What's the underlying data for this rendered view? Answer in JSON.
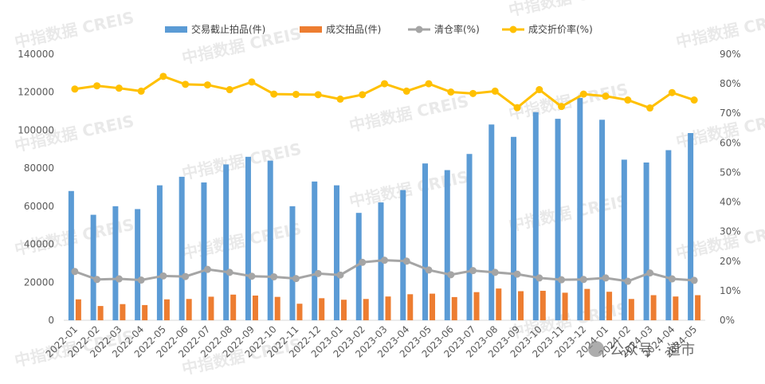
{
  "chart_data": {
    "type": "bar",
    "categories": [
      "2022-01",
      "2022-02",
      "2022-03",
      "2022-04",
      "2022-05",
      "2022-06",
      "2022-07",
      "2022-08",
      "2022-09",
      "2022-10",
      "2022-11",
      "2022-12",
      "2023-01",
      "2023-02",
      "2023-03",
      "2023-04",
      "2023-05",
      "2023-06",
      "2023-07",
      "2023-08",
      "2023-09",
      "2023-10",
      "2023-11",
      "2023-12",
      "2024-01",
      "2024-02",
      "2024-03",
      "2024-04",
      "2024-05"
    ],
    "series": [
      {
        "name": "交易截止拍品(件)",
        "kind": "bar",
        "axis": "left",
        "color": "#5b9bd5",
        "values": [
          68000,
          55500,
          60000,
          58500,
          71000,
          75500,
          72500,
          82000,
          86000,
          84000,
          60000,
          73000,
          71000,
          56500,
          62000,
          68500,
          82500,
          79000,
          87500,
          103000,
          96500,
          109500,
          106000,
          117000,
          105500,
          84500,
          83000,
          89500,
          98500
        ]
      },
      {
        "name": "成交拍品(件)",
        "kind": "bar",
        "axis": "left",
        "color": "#ed7d31",
        "values": [
          11000,
          7500,
          8500,
          8000,
          11000,
          11200,
          12400,
          13500,
          13000,
          12300,
          8700,
          11600,
          10800,
          11200,
          12500,
          13700,
          14000,
          12200,
          14800,
          16700,
          15300,
          15500,
          14500,
          16500,
          15000,
          11200,
          13200,
          12500,
          13200
        ]
      },
      {
        "name": "清仓率(%)",
        "kind": "line",
        "axis": "right",
        "color": "#a5a5a5",
        "values": [
          16.5,
          13.8,
          14.0,
          13.6,
          15.0,
          14.8,
          17.2,
          16.2,
          14.9,
          14.7,
          14.1,
          15.8,
          15.3,
          19.6,
          20.3,
          20.0,
          17.0,
          15.4,
          16.8,
          16.2,
          15.6,
          14.3,
          13.7,
          13.8,
          14.3,
          13.2,
          16.0,
          14.0,
          13.5
        ]
      },
      {
        "name": "成交折价率(%)",
        "kind": "line",
        "axis": "right",
        "color": "#ffc000",
        "values": [
          78.2,
          79.3,
          78.5,
          77.5,
          82.5,
          79.8,
          79.6,
          78.0,
          80.6,
          76.5,
          76.4,
          76.3,
          74.8,
          76.3,
          80.0,
          77.5,
          80.0,
          77.2,
          76.7,
          77.5,
          71.9,
          78.0,
          72.3,
          76.5,
          75.8,
          74.5,
          71.8,
          77.0,
          74.5
        ]
      }
    ],
    "y_left": {
      "min": 0,
      "max": 140000,
      "ticks": [
        "0",
        "20000",
        "40000",
        "60000",
        "80000",
        "100000",
        "120000",
        "140000"
      ]
    },
    "y_right": {
      "min": 0,
      "max": 90,
      "ticks": [
        "0%",
        "10%",
        "20%",
        "30%",
        "40%",
        "50%",
        "60%",
        "70%",
        "80%",
        "90%"
      ]
    },
    "legend_position": "top",
    "grid": false
  },
  "watermark": {
    "text": "中指数据 CREIS"
  },
  "source_tag": {
    "text": "公众号 · 道市"
  }
}
